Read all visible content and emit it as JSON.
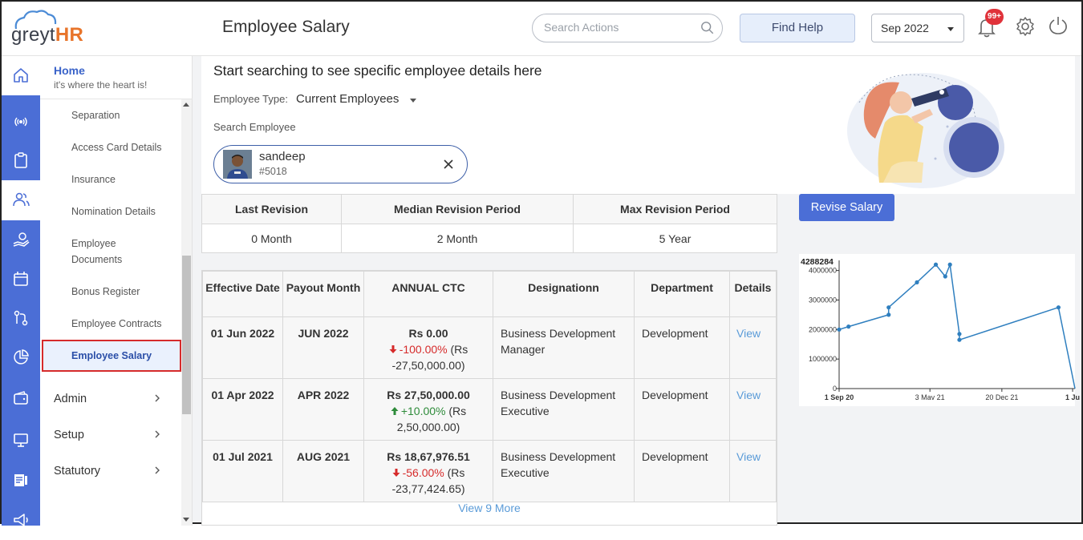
{
  "app": {
    "logo_text": "greyt",
    "logo_accent": "HR",
    "page_title": "Employee Salary"
  },
  "header": {
    "search_placeholder": "Search Actions",
    "find_help_label": "Find Help",
    "month_value": "Sep 2022",
    "notification_badge": "99+"
  },
  "sidebar": {
    "home_title": "Home",
    "home_subtitle": "it's where the heart is!",
    "items": [
      {
        "label": "Separation"
      },
      {
        "label": "Access Card Details"
      },
      {
        "label": "Insurance"
      },
      {
        "label": "Nomination Details"
      },
      {
        "label": "Employee Documents"
      },
      {
        "label": "Bonus Register"
      },
      {
        "label": "Employee Contracts"
      },
      {
        "label": "Employee Salary"
      }
    ],
    "groups": [
      {
        "label": "Admin"
      },
      {
        "label": "Setup"
      },
      {
        "label": "Statutory"
      }
    ]
  },
  "search_card": {
    "heading": "Start searching to see specific employee details here",
    "employee_type_label": "Employee Type:",
    "employee_type_value": "Current Employees",
    "search_employee_label": "Search Employee",
    "employee_name": "sandeep",
    "employee_id": "#5018"
  },
  "revision": {
    "headers": [
      "Last Revision",
      "Median Revision Period",
      "Max Revision Period"
    ],
    "values": [
      "0 Month",
      "2 Month",
      "5 Year"
    ]
  },
  "salary_table": {
    "headers": [
      "Effective Date",
      "Payout Month",
      "ANNUAL CTC",
      "Designationn",
      "Department",
      "Details"
    ],
    "rows": [
      {
        "effective_date": "01 Jun 2022",
        "payout_month": "JUN 2022",
        "ctc": "Rs 0.00",
        "change_pct": "-100.00%",
        "change_amt_a": "(Rs",
        "change_amt_b": "-27,50,000.00)",
        "direction": "down",
        "designation": "Business Development Manager",
        "department": "Development",
        "details": "View"
      },
      {
        "effective_date": "01 Apr 2022",
        "payout_month": "APR 2022",
        "ctc": "Rs 27,50,000.00",
        "change_pct": "+10.00%",
        "change_amt_a": "(Rs",
        "change_amt_b": "2,50,000.00)",
        "direction": "up",
        "designation": "Business Development Executive",
        "department": "Development",
        "details": "View"
      },
      {
        "effective_date": "01 Jul 2021",
        "payout_month": "AUG 2021",
        "ctc": "Rs 18,67,976.51",
        "change_pct": "-56.00%",
        "change_amt_a": "(Rs",
        "change_amt_b": "-23,77,424.65)",
        "direction": "down",
        "designation": "Business Development Executive",
        "department": "Development",
        "details": "View"
      }
    ],
    "view_more": "View 9 More"
  },
  "right_panel": {
    "revise_button": "Revise Salary"
  },
  "chart_data": {
    "type": "line",
    "ylim": [
      0,
      4288284
    ],
    "max_label": "4288284",
    "y_ticks": [
      "0",
      "1000000",
      "2000000",
      "3000000",
      "4000000"
    ],
    "x_ticks": [
      "1 Sep 20",
      "3 Mav 21",
      "20 Dec 21",
      "1 Ju"
    ],
    "series": [
      {
        "x": [
          0,
          0.04,
          0.21,
          0.21,
          0.33,
          0.41,
          0.45,
          0.47,
          0.51,
          0.51,
          0.93,
          1.0
        ],
        "values": [
          2000000,
          2100000,
          2500000,
          2750000,
          3600000,
          4200000,
          3800000,
          4200000,
          1850000,
          1650000,
          2750000,
          0
        ]
      }
    ],
    "color": "#2f7fbf"
  },
  "colors": {
    "brand": "#4b6ed6",
    "active_border": "#d62b2b",
    "link": "#5a9bd8",
    "down": "#d62b2b",
    "up": "#2e8b3a"
  }
}
